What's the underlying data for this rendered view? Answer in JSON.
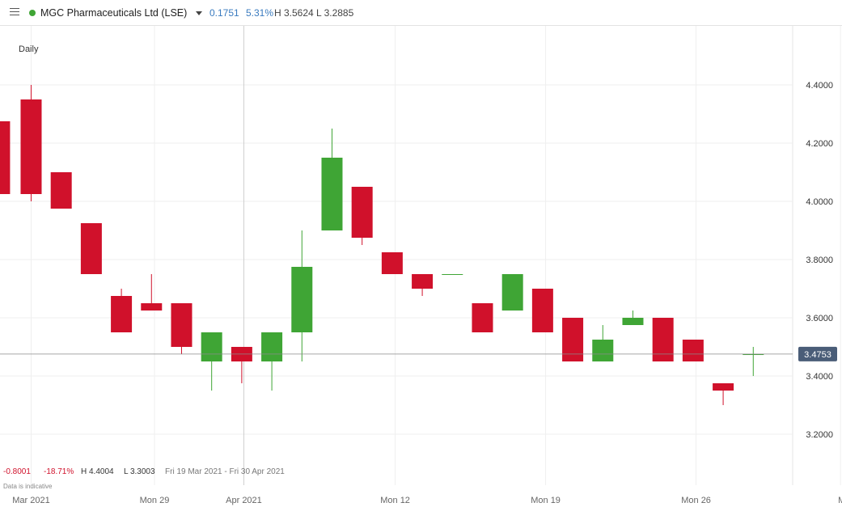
{
  "header": {
    "menu_icon": "hamburger-menu-icon",
    "status_color": "#3fa535",
    "instrument": "MGC Pharmaceuticals Ltd (LSE)",
    "change": "0.1751",
    "change_pct": "5.31%",
    "high": "H 3.5624",
    "low": "L 3.2885"
  },
  "period": "Daily",
  "footer": {
    "change": "-0.8001",
    "change_pct": "-18.71%",
    "high": "H 4.4004",
    "low": "L 3.3003",
    "range": "Fri 19 Mar 2021 - Fri 30 Apr 2021",
    "note": "Data is indicative"
  },
  "colors": {
    "up": "#3fa535",
    "down": "#d0112b",
    "last_price_bg": "#4a5d78"
  },
  "chart_data": {
    "type": "candlestick",
    "ylim": [
      3.1,
      4.55
    ],
    "y_ticks": [
      "4.4000",
      "4.2000",
      "4.0000",
      "3.8000",
      "3.6000",
      "3.4000",
      "3.2000"
    ],
    "x_ticks": [
      {
        "label": "Mar 2021",
        "index": 0.9
      },
      {
        "label": "Mon 29",
        "index": 5
      },
      {
        "label": "Apr 2021",
        "index": 7.97
      },
      {
        "label": "Mon 12",
        "index": 13
      },
      {
        "label": "Mon 19",
        "index": 18
      },
      {
        "label": "Mon 26",
        "index": 23
      },
      {
        "label": "May",
        "index": 27.8
      }
    ],
    "last_price": "3.4753",
    "candles": [
      {
        "i": -0.15,
        "o": 4.275,
        "h": 4.275,
        "l": 3.925,
        "c": 4.025
      },
      {
        "i": 0.9,
        "o": 4.35,
        "h": 4.4,
        "l": 4.0,
        "c": 4.025
      },
      {
        "i": 1.9,
        "o": 4.1,
        "h": 4.1,
        "l": 3.975,
        "c": 3.975
      },
      {
        "i": 2.9,
        "o": 3.925,
        "h": 3.925,
        "l": 3.75,
        "c": 3.75
      },
      {
        "i": 3.9,
        "o": 3.675,
        "h": 3.7,
        "l": 3.55,
        "c": 3.55
      },
      {
        "i": 4.9,
        "o": 3.65,
        "h": 3.75,
        "l": 3.625,
        "c": 3.625
      },
      {
        "i": 5.9,
        "o": 3.65,
        "h": 3.65,
        "l": 3.475,
        "c": 3.5
      },
      {
        "i": 6.9,
        "o": 3.45,
        "h": 3.55,
        "l": 3.35,
        "c": 3.55
      },
      {
        "i": 7.9,
        "o": 3.5,
        "h": 3.5,
        "l": 3.375,
        "c": 3.45
      },
      {
        "i": 8.9,
        "o": 3.45,
        "h": 3.55,
        "l": 3.35,
        "c": 3.55
      },
      {
        "i": 9.9,
        "o": 3.55,
        "h": 3.9,
        "l": 3.45,
        "c": 3.775
      },
      {
        "i": 10.9,
        "o": 3.9,
        "h": 4.25,
        "l": 3.9,
        "c": 4.15
      },
      {
        "i": 11.9,
        "o": 4.05,
        "h": 4.05,
        "l": 3.85,
        "c": 3.875
      },
      {
        "i": 12.9,
        "o": 3.825,
        "h": 3.825,
        "l": 3.75,
        "c": 3.75
      },
      {
        "i": 13.9,
        "o": 3.75,
        "h": 3.75,
        "l": 3.675,
        "c": 3.7
      },
      {
        "i": 14.9,
        "o": 3.75,
        "h": 3.75,
        "l": 3.75,
        "c": 3.75
      },
      {
        "i": 15.9,
        "o": 3.65,
        "h": 3.65,
        "l": 3.55,
        "c": 3.55
      },
      {
        "i": 16.9,
        "o": 3.625,
        "h": 3.75,
        "l": 3.625,
        "c": 3.75
      },
      {
        "i": 17.9,
        "o": 3.7,
        "h": 3.7,
        "l": 3.55,
        "c": 3.55
      },
      {
        "i": 18.9,
        "o": 3.6,
        "h": 3.6,
        "l": 3.45,
        "c": 3.45
      },
      {
        "i": 19.9,
        "o": 3.45,
        "h": 3.575,
        "l": 3.45,
        "c": 3.525
      },
      {
        "i": 20.9,
        "o": 3.575,
        "h": 3.625,
        "l": 3.575,
        "c": 3.6
      },
      {
        "i": 21.9,
        "o": 3.6,
        "h": 3.6,
        "l": 3.45,
        "c": 3.45
      },
      {
        "i": 22.9,
        "o": 3.525,
        "h": 3.525,
        "l": 3.45,
        "c": 3.45
      },
      {
        "i": 23.9,
        "o": 3.375,
        "h": 3.375,
        "l": 3.3,
        "c": 3.35
      },
      {
        "i": 24.9,
        "o": 3.475,
        "h": 3.5,
        "l": 3.4,
        "c": 3.475
      }
    ]
  }
}
